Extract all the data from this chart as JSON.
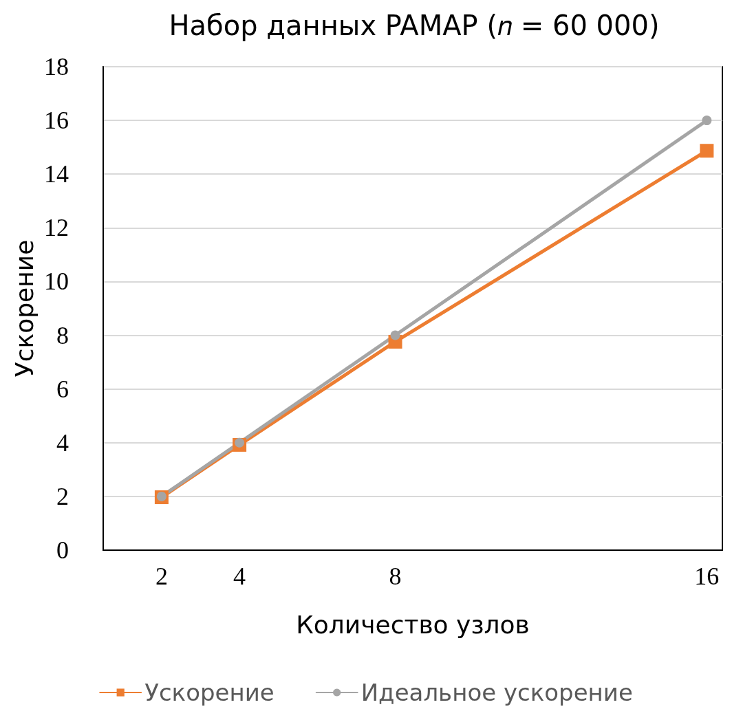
{
  "chart_data": {
    "type": "line",
    "title": "Набор данных PAMAP (𝑛 = 60 000)",
    "xlabel": "Количество узлов",
    "ylabel": "Ускорение",
    "x": [
      2,
      4,
      8,
      16
    ],
    "series": [
      {
        "name": "Ускорение",
        "color": "#ed7d31",
        "values": [
          1.97,
          3.92,
          7.76,
          14.87
        ],
        "marker": "square"
      },
      {
        "name": "Идеальное ускорение",
        "color": "#a5a5a5",
        "values": [
          2,
          4,
          8,
          16
        ],
        "marker": "circle"
      }
    ],
    "xlim": [
      0.5,
      16.4
    ],
    "xticks": [
      2,
      4,
      8,
      16
    ],
    "ylim": [
      0,
      18
    ],
    "yticks": [
      0,
      2,
      4,
      6,
      8,
      10,
      12,
      14,
      16,
      18
    ],
    "grid": "y",
    "legend": "bottom",
    "line_style": "solid"
  }
}
